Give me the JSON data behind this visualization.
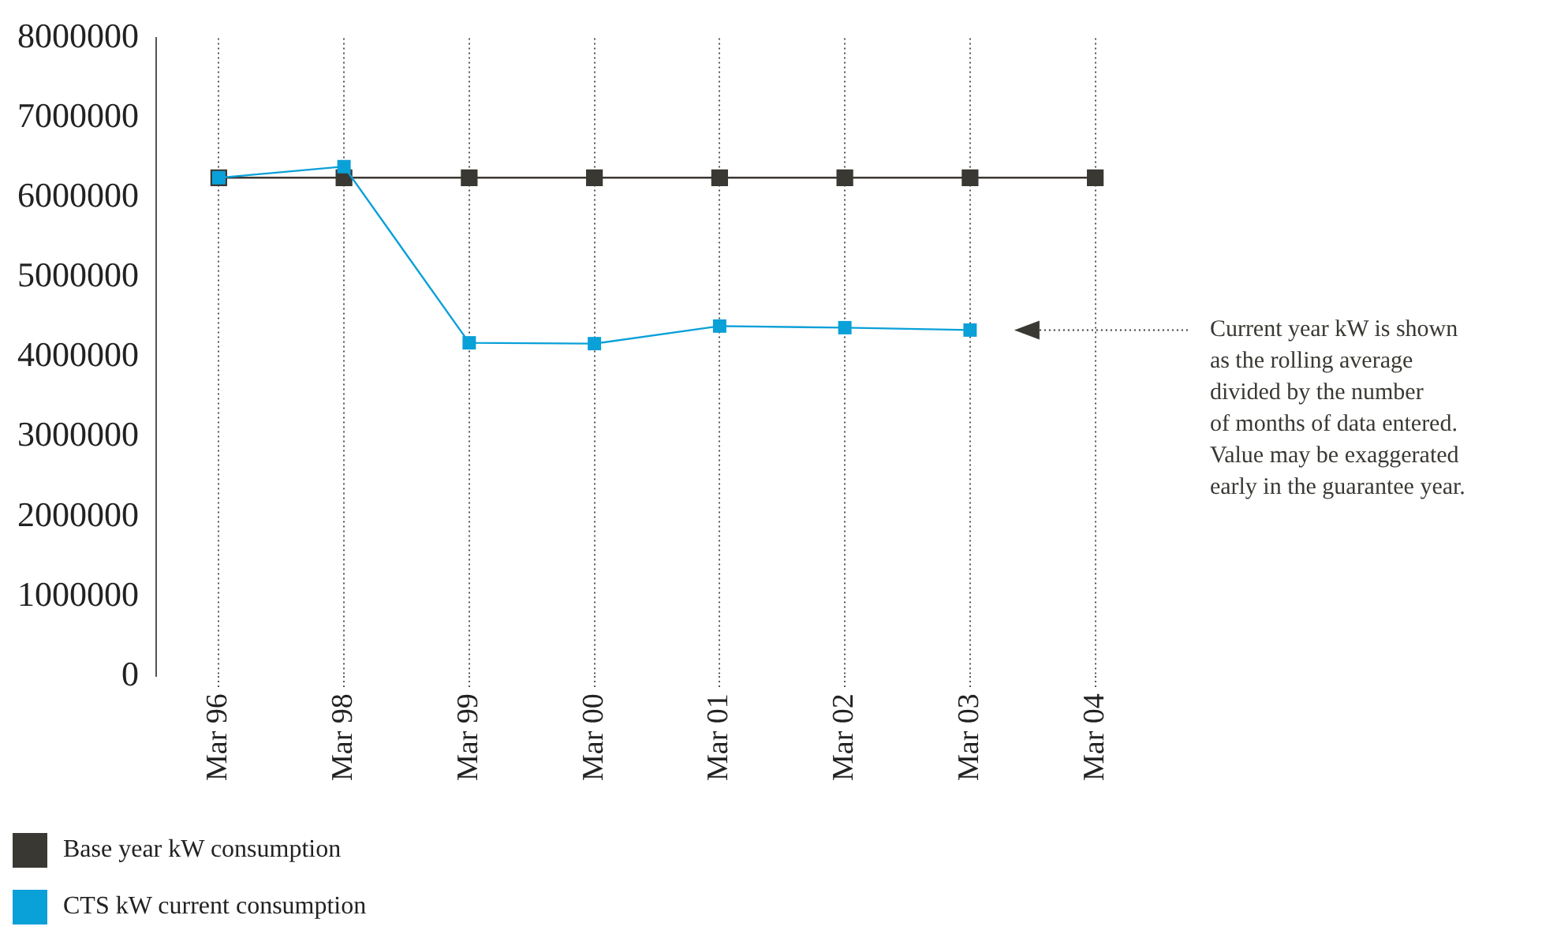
{
  "chart_data": {
    "type": "line",
    "categories": [
      "Mar 96",
      "Mar 98",
      "Mar 99",
      "Mar 00",
      "Mar 01",
      "Mar 02",
      "Mar 03",
      "Mar 04"
    ],
    "series": [
      {
        "name": "Base year kW consumption",
        "color": "#3a3833",
        "values": [
          6250000,
          6250000,
          6250000,
          6250000,
          6250000,
          6250000,
          6250000,
          6250000
        ]
      },
      {
        "name": "CTS kW current consumption",
        "color": "#0aa0d8",
        "values": [
          6250000,
          6390000,
          4180000,
          4170000,
          4390000,
          4370000,
          4340000,
          null
        ]
      }
    ],
    "ylim": [
      0,
      8000000
    ],
    "yticks": [
      0,
      1000000,
      2000000,
      3000000,
      4000000,
      5000000,
      6000000,
      7000000,
      8000000
    ],
    "grid": "x",
    "legend": "bottom left",
    "marker": "square",
    "line_style": "solid",
    "annotations": [
      "Current year kW is shown\nas the rolling average\ndivided by the number\nof months of data entered.\nValue may be exaggerated\nearly in the guarantee year."
    ]
  }
}
